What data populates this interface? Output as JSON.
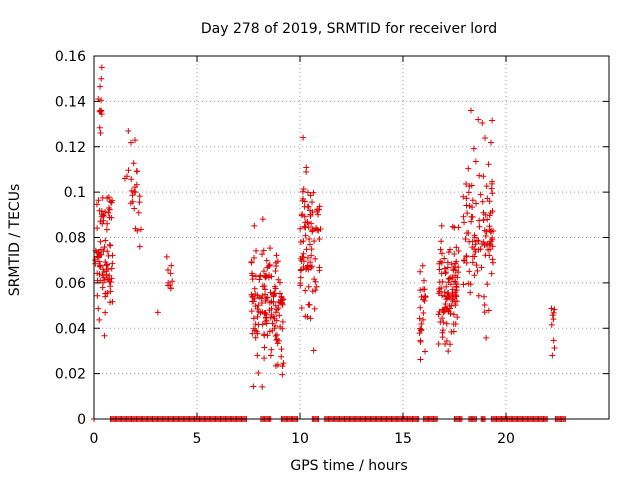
{
  "chart_data": {
    "type": "scatter",
    "title": "Day 278 of 2019, SRMTID for receiver lord",
    "xlabel": "GPS time / hours",
    "ylabel": "SRMTID / TECUs",
    "xlim": [
      0,
      25
    ],
    "ylim": [
      0,
      0.16
    ],
    "xticks": [
      0,
      5,
      10,
      15,
      20
    ],
    "xtick_labels": [
      "0",
      "5",
      "10",
      "15",
      "20"
    ],
    "yticks": [
      0,
      0.02,
      0.04,
      0.06,
      0.08,
      0.1,
      0.12,
      0.14,
      0.16
    ],
    "ytick_labels": [
      "0",
      "0.02",
      "0.04",
      "0.06",
      "0.08",
      "0.1",
      "0.12",
      "0.14",
      "0.16"
    ],
    "grid": true,
    "marker": "+",
    "color": "#e00000",
    "series": [
      {
        "name": "SRMTID",
        "clusters": [
          {
            "x": [
              0.05,
              0.9
            ],
            "y": [
              0.032,
              0.112
            ],
            "n": 90
          },
          {
            "x": [
              0.2,
              0.4
            ],
            "y": [
              0.12,
              0.158
            ],
            "n": 10
          },
          {
            "x": [
              1.6,
              2.3
            ],
            "y": [
              0.06,
              0.136
            ],
            "n": 22
          },
          {
            "x": [
              3.5,
              3.8
            ],
            "y": [
              0.045,
              0.078
            ],
            "n": 8
          },
          {
            "x": [
              7.6,
              9.2
            ],
            "y": [
              0.01,
              0.09
            ],
            "n": 150
          },
          {
            "x": [
              10.0,
              11.0
            ],
            "y": [
              0.025,
              0.125
            ],
            "n": 90
          },
          {
            "x": [
              15.8,
              16.1
            ],
            "y": [
              0.022,
              0.078
            ],
            "n": 25
          },
          {
            "x": [
              16.7,
              17.7
            ],
            "y": [
              0.018,
              0.098
            ],
            "n": 110
          },
          {
            "x": [
              17.9,
              19.4
            ],
            "y": [
              0.03,
              0.136
            ],
            "n": 110
          },
          {
            "x": [
              22.2,
              22.4
            ],
            "y": [
              0.022,
              0.054
            ],
            "n": 7
          }
        ],
        "points": [
          [
            3.1,
            0.047
          ],
          [
            3.6,
            0.06
          ],
          [
            3.7,
            0.059
          ],
          [
            1.5,
            0.106
          ],
          [
            1.6,
            0.107
          ],
          [
            2.1,
            0.083
          ],
          [
            2.0,
            0.1
          ],
          [
            10.15,
            0.124
          ],
          [
            18.3,
            0.136
          ],
          [
            18.65,
            0.132
          ],
          [
            18.9,
            0.107
          ],
          [
            0.38,
            0.155
          ],
          [
            0.35,
            0.15
          ],
          [
            22.3,
            0.044
          ],
          [
            22.25,
            0.028
          ]
        ],
        "zero_segments": [
          [
            0,
            0.05
          ],
          [
            0.8,
            7.4
          ],
          [
            8.1,
            8.6
          ],
          [
            9.1,
            9.9
          ],
          [
            10.6,
            10.9
          ],
          [
            11.2,
            15.8
          ],
          [
            16.0,
            16.7
          ],
          [
            17.5,
            17.9
          ],
          [
            18.2,
            18.6
          ],
          [
            18.8,
            19.0
          ],
          [
            19.3,
            22.0
          ],
          [
            22.4,
            22.9
          ]
        ]
      }
    ]
  }
}
